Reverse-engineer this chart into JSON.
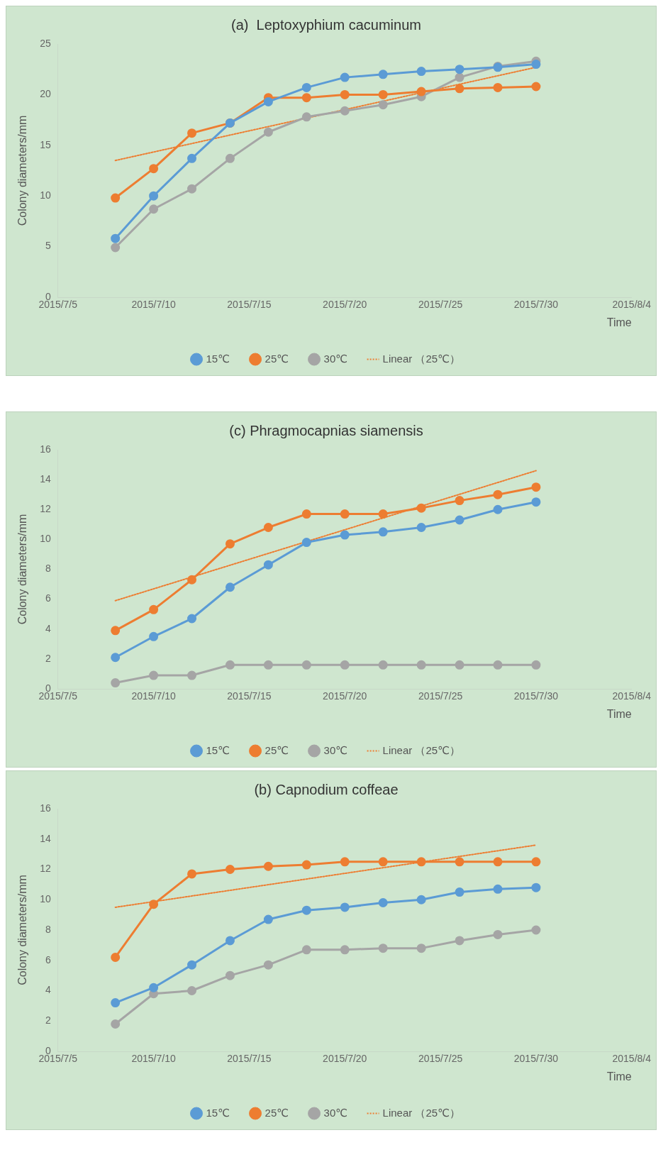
{
  "chart_data": [
    {
      "type": "line",
      "title": "(a)  Leptoxyphium cacuminum",
      "xlabel": "Time",
      "ylabel": "Colony diameters/mm",
      "x": [
        "2015-07-08",
        "2015-07-10",
        "2015-07-12",
        "2015-07-14",
        "2015-07-16",
        "2015-07-18",
        "2015-07-20",
        "2015-07-22",
        "2015-07-24",
        "2015-07-26",
        "2015-07-28",
        "2015-07-30"
      ],
      "xlim": [
        "2015-07-05",
        "2015-08-04"
      ],
      "xticks": [
        {
          "value": "2015-07-05",
          "label": "2015/7/5"
        },
        {
          "value": "2015-07-10",
          "label": "2015/7/10"
        },
        {
          "value": "2015-07-15",
          "label": "2015/7/15"
        },
        {
          "value": "2015-07-20",
          "label": "2015/7/20"
        },
        {
          "value": "2015-07-25",
          "label": "2015/7/25"
        },
        {
          "value": "2015-07-30",
          "label": "2015/7/30"
        },
        {
          "value": "2015-08-04",
          "label": "2015/8/4"
        }
      ],
      "ylim": [
        0,
        25
      ],
      "yticks": [
        0,
        5,
        10,
        15,
        20,
        25
      ],
      "grid": false,
      "legend": "bottom",
      "marker": "circle",
      "series": [
        {
          "name": "15℃",
          "color": "#5b9bd5",
          "values": [
            5.8,
            10.0,
            13.7,
            17.2,
            19.3,
            20.7,
            21.7,
            22.0,
            22.3,
            22.5,
            22.7,
            23.0
          ]
        },
        {
          "name": "25℃",
          "color": "#ed7d31",
          "values": [
            9.8,
            12.7,
            16.2,
            17.2,
            19.7,
            19.7,
            20.0,
            20.0,
            20.3,
            20.6,
            20.7,
            20.8
          ]
        },
        {
          "name": "30℃",
          "color": "#a5a5a5",
          "values": [
            4.9,
            8.7,
            10.7,
            13.7,
            16.3,
            17.8,
            18.4,
            19.0,
            19.8,
            21.7,
            22.8,
            23.3
          ]
        },
        {
          "name": "Linear （25℃）",
          "type": "line",
          "color": "#ed7d31",
          "line_style": "dotted",
          "marker": "none",
          "x": [
            "2015-07-08",
            "2015-07-30"
          ],
          "values": [
            13.5,
            22.7
          ]
        }
      ]
    },
    {
      "type": "line",
      "title": "(c) Phragmocapnias siamensis",
      "xlabel": "Time",
      "ylabel": "Colony diameters/mm",
      "x": [
        "2015-07-08",
        "2015-07-10",
        "2015-07-12",
        "2015-07-14",
        "2015-07-16",
        "2015-07-18",
        "2015-07-20",
        "2015-07-22",
        "2015-07-24",
        "2015-07-26",
        "2015-07-28",
        "2015-07-30"
      ],
      "xlim": [
        "2015-07-05",
        "2015-08-04"
      ],
      "xticks": [
        {
          "value": "2015-07-05",
          "label": "2015/7/5"
        },
        {
          "value": "2015-07-10",
          "label": "2015/7/10"
        },
        {
          "value": "2015-07-15",
          "label": "2015/7/15"
        },
        {
          "value": "2015-07-20",
          "label": "2015/7/20"
        },
        {
          "value": "2015-07-25",
          "label": "2015/7/25"
        },
        {
          "value": "2015-07-30",
          "label": "2015/7/30"
        },
        {
          "value": "2015-08-04",
          "label": "2015/8/4"
        }
      ],
      "ylim": [
        0,
        16
      ],
      "yticks": [
        0,
        2,
        4,
        6,
        8,
        10,
        12,
        14,
        16
      ],
      "grid": false,
      "legend": "bottom",
      "marker": "circle",
      "series": [
        {
          "name": "15℃",
          "color": "#5b9bd5",
          "values": [
            2.1,
            3.5,
            4.7,
            6.8,
            8.3,
            9.8,
            10.3,
            10.5,
            10.8,
            11.3,
            12.0,
            12.5
          ]
        },
        {
          "name": "25℃",
          "color": "#ed7d31",
          "values": [
            3.9,
            5.3,
            7.3,
            9.7,
            10.8,
            11.7,
            11.7,
            11.7,
            12.1,
            12.6,
            13.0,
            13.5
          ]
        },
        {
          "name": "30℃",
          "color": "#a5a5a5",
          "values": [
            0.4,
            0.9,
            0.9,
            1.6,
            1.6,
            1.6,
            1.6,
            1.6,
            1.6,
            1.6,
            1.6,
            1.6
          ]
        },
        {
          "name": "Linear （25℃）",
          "type": "line",
          "color": "#ed7d31",
          "line_style": "dotted",
          "marker": "none",
          "x": [
            "2015-07-08",
            "2015-07-30"
          ],
          "values": [
            5.9,
            14.6
          ]
        }
      ]
    },
    {
      "type": "line",
      "title": "(b) Capnodium coffeae",
      "xlabel": "Time",
      "ylabel": "Colony diameters/mm",
      "x": [
        "2015-07-08",
        "2015-07-10",
        "2015-07-12",
        "2015-07-14",
        "2015-07-16",
        "2015-07-18",
        "2015-07-20",
        "2015-07-22",
        "2015-07-24",
        "2015-07-26",
        "2015-07-28",
        "2015-07-30"
      ],
      "xlim": [
        "2015-07-05",
        "2015-08-04"
      ],
      "xticks": [
        {
          "value": "2015-07-05",
          "label": "2015/7/5"
        },
        {
          "value": "2015-07-10",
          "label": "2015/7/10"
        },
        {
          "value": "2015-07-15",
          "label": "2015/7/15"
        },
        {
          "value": "2015-07-20",
          "label": "2015/7/20"
        },
        {
          "value": "2015-07-25",
          "label": "2015/7/25"
        },
        {
          "value": "2015-07-30",
          "label": "2015/7/30"
        },
        {
          "value": "2015-08-04",
          "label": "2015/8/4"
        }
      ],
      "ylim": [
        0,
        16
      ],
      "yticks": [
        0,
        2,
        4,
        6,
        8,
        10,
        12,
        14,
        16
      ],
      "grid": false,
      "legend": "bottom",
      "marker": "circle",
      "series": [
        {
          "name": "15℃",
          "color": "#5b9bd5",
          "values": [
            3.2,
            4.2,
            5.7,
            7.3,
            8.7,
            9.3,
            9.5,
            9.8,
            10.0,
            10.5,
            10.7,
            10.8
          ]
        },
        {
          "name": "25℃",
          "color": "#ed7d31",
          "values": [
            6.2,
            9.7,
            11.7,
            12.0,
            12.2,
            12.3,
            12.5,
            12.5,
            12.5,
            12.5,
            12.5,
            12.5
          ]
        },
        {
          "name": "30℃",
          "color": "#a5a5a5",
          "values": [
            1.8,
            3.8,
            4.0,
            5.0,
            5.7,
            6.7,
            6.7,
            6.8,
            6.8,
            7.3,
            7.7,
            8.0
          ]
        },
        {
          "name": "Linear （25℃）",
          "type": "line",
          "color": "#ed7d31",
          "line_style": "dotted",
          "marker": "none",
          "x": [
            "2015-07-08",
            "2015-07-30"
          ],
          "values": [
            9.5,
            13.6
          ]
        }
      ]
    }
  ]
}
